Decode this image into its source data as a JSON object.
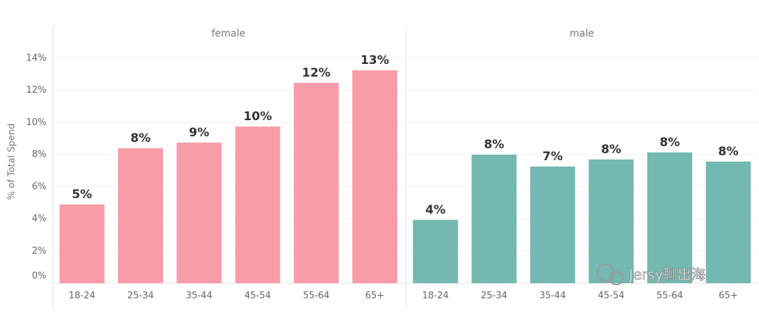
{
  "chart_data": {
    "type": "bar",
    "y_label": "% of Total Spend",
    "categories": [
      "18-24",
      "25-34",
      "35-44",
      "45-54",
      "55-64",
      "65+"
    ],
    "series": [
      {
        "name": "female",
        "color": "#f89da8",
        "values": [
          4.9,
          8.4,
          8.75,
          9.75,
          12.47,
          13.25
        ],
        "value_labels": [
          "5%",
          "8%",
          "9%",
          "10%",
          "12%",
          "13%"
        ]
      },
      {
        "name": "male",
        "color": "#74b8b2",
        "values": [
          3.94,
          8.0,
          7.26,
          7.7,
          8.14,
          7.57
        ],
        "value_labels": [
          "4%",
          "8%",
          "7%",
          "8%",
          "8%",
          "8%"
        ]
      }
    ],
    "ylim": [
      0,
      15
    ],
    "yticks": [
      {
        "value": 0,
        "label": "0%"
      },
      {
        "value": 2,
        "label": "2%"
      },
      {
        "value": 4,
        "label": "4%"
      },
      {
        "value": 6,
        "label": "6%"
      },
      {
        "value": 8,
        "label": "8%"
      },
      {
        "value": 10,
        "label": "10%"
      },
      {
        "value": 12,
        "label": "12%"
      },
      {
        "value": 14,
        "label": "14%"
      }
    ],
    "grid": true,
    "watermark": "Jersy聊出海"
  }
}
